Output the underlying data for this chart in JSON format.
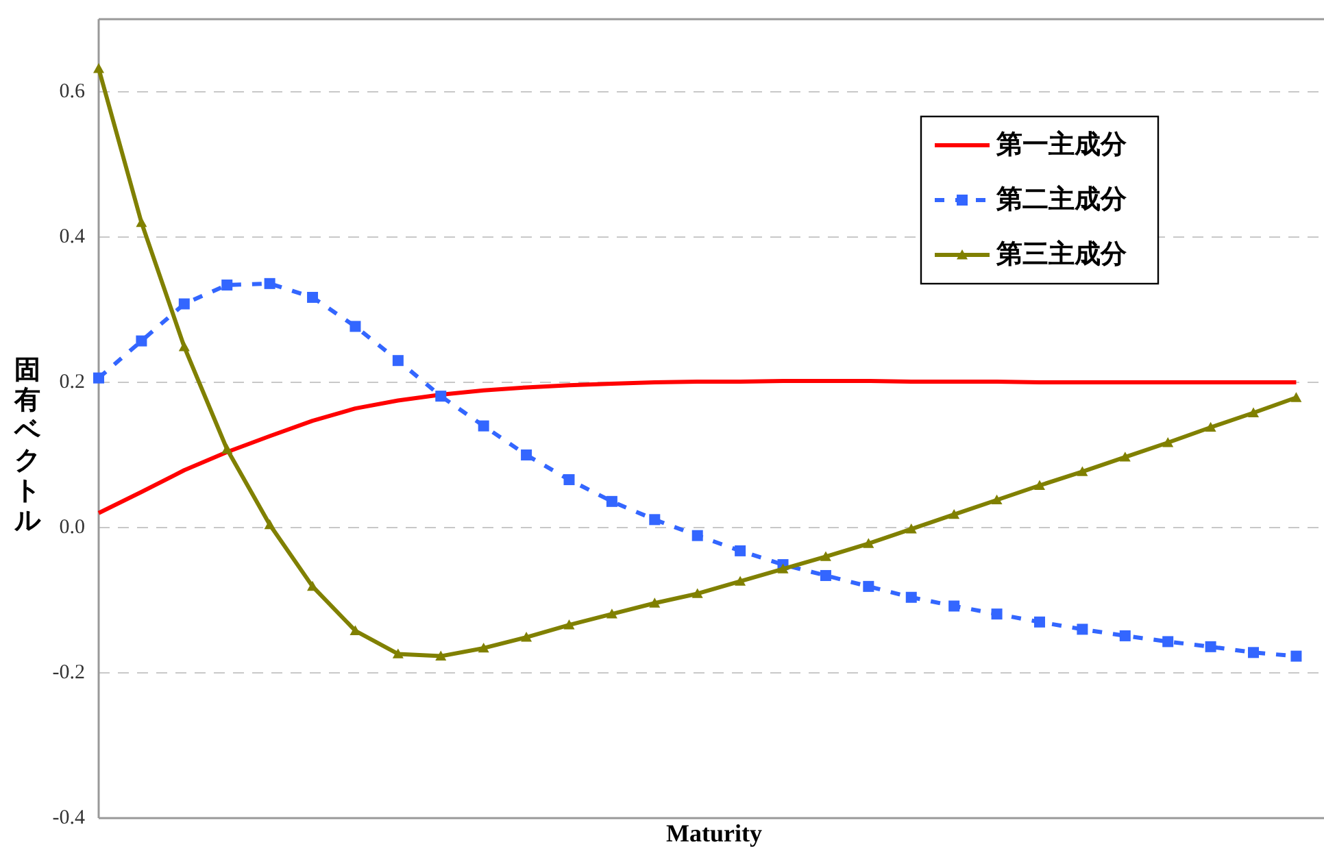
{
  "chart_data": {
    "type": "line",
    "xlabel": "Maturity",
    "ylabel": "固有ベクトル",
    "categories": [
      null,
      null,
      null,
      null,
      null,
      null,
      null,
      null,
      null,
      null,
      null,
      null,
      null,
      null,
      null,
      null,
      null,
      null,
      null,
      null,
      null,
      null,
      null,
      null,
      null,
      null,
      null,
      null,
      null
    ],
    "series": [
      {
        "name": "第一主成分",
        "color": "#ff0000",
        "marker": "none",
        "line_style": "solid",
        "values": [
          0.02,
          0.049,
          0.079,
          0.104,
          0.126,
          0.147,
          0.164,
          0.175,
          0.183,
          0.189,
          0.193,
          0.196,
          0.198,
          0.2,
          0.201,
          0.201,
          0.202,
          0.202,
          0.202,
          0.201,
          0.201,
          0.201,
          0.2,
          0.2,
          0.2,
          0.2,
          0.2,
          0.2,
          0.2
        ]
      },
      {
        "name": "第二主成分",
        "color": "#3366ff",
        "marker": "square",
        "line_style": "dashed",
        "values": [
          0.206,
          0.257,
          0.308,
          0.334,
          0.336,
          0.317,
          0.277,
          0.23,
          0.181,
          0.14,
          0.1,
          0.066,
          0.036,
          0.011,
          -0.011,
          -0.032,
          -0.051,
          -0.066,
          -0.081,
          -0.096,
          -0.108,
          -0.119,
          -0.13,
          -0.14,
          -0.149,
          -0.157,
          -0.164,
          -0.172,
          -0.177
        ]
      },
      {
        "name": "第三主成分",
        "color": "#808000",
        "marker": "triangle",
        "line_style": "solid",
        "values": [
          0.632,
          0.42,
          0.249,
          0.108,
          0.004,
          -0.081,
          -0.142,
          -0.174,
          -0.177,
          -0.166,
          -0.151,
          -0.134,
          -0.119,
          -0.104,
          -0.091,
          -0.074,
          -0.057,
          -0.04,
          -0.022,
          -0.002,
          0.018,
          0.038,
          0.058,
          0.077,
          0.097,
          0.117,
          0.138,
          0.158,
          0.179
        ]
      }
    ],
    "ylim": [
      -0.4,
      0.7
    ],
    "yticks": [
      {
        "value": -0.4,
        "label": "-0.4"
      },
      {
        "value": -0.2,
        "label": "-0.2"
      },
      {
        "value": 0,
        "label": "0.0"
      },
      {
        "value": 0.2,
        "label": "0.2"
      },
      {
        "value": 0.4,
        "label": "0.4"
      },
      {
        "value": 0.6,
        "label": "0.6"
      }
    ],
    "grid": "y",
    "legend": "top right"
  }
}
